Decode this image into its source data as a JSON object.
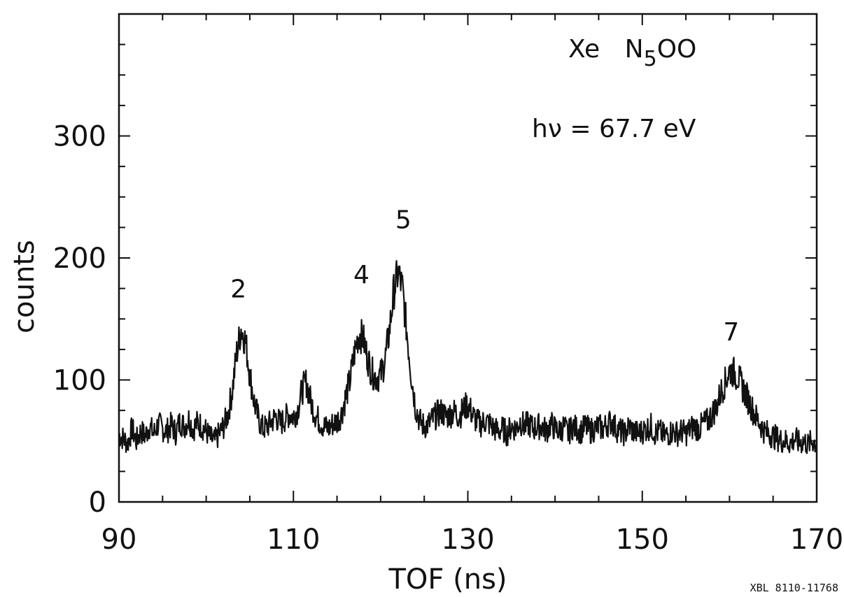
{
  "chart_data": {
    "type": "line",
    "title": "",
    "xlabel": "TOF (ns)",
    "ylabel": "counts",
    "xlim": [
      90,
      170
    ],
    "ylim": [
      0,
      400
    ],
    "xticks": [
      90,
      110,
      130,
      150,
      170
    ],
    "yticks": [
      0,
      100,
      200,
      300
    ],
    "grid": false,
    "legend": "none",
    "line_color": "#111111",
    "annotation": {
      "element": "Xe",
      "transition_main": "N",
      "transition_sub": "5",
      "transition_tail": "OO",
      "energy": "hν = 67.7 eV"
    },
    "peak_labels": [
      {
        "text": "2",
        "x": 103.7,
        "y": 148
      },
      {
        "text": "4",
        "x": 117.8,
        "y": 160
      },
      {
        "text": "5",
        "x": 122.6,
        "y": 205
      },
      {
        "text": "7",
        "x": 160.2,
        "y": 113
      }
    ],
    "credit": "XBL 8110-11768",
    "x": [
      90,
      90.5,
      91,
      91.5,
      92,
      92.5,
      93,
      93.5,
      94,
      94.5,
      95,
      95.5,
      96,
      96.5,
      97,
      97.5,
      98,
      98.5,
      99,
      99.5,
      100,
      100.5,
      101,
      101.5,
      102,
      102.5,
      103,
      103.5,
      104,
      104.5,
      105,
      105.5,
      106,
      106.5,
      107,
      107.5,
      108,
      108.5,
      109,
      109.5,
      110,
      110.5,
      111,
      111.5,
      112,
      112.5,
      113,
      113.5,
      114,
      114.5,
      115,
      115.5,
      116,
      116.5,
      117,
      117.5,
      118,
      118.5,
      119,
      119.5,
      120,
      120.5,
      121,
      121.5,
      122,
      122.5,
      123,
      123.5,
      124,
      124.5,
      125,
      125.5,
      126,
      126.5,
      127,
      127.5,
      128,
      128.5,
      129,
      129.5,
      130,
      130.5,
      131,
      131.5,
      132,
      132.5,
      133,
      133.5,
      134,
      134.5,
      135,
      135.5,
      136,
      136.5,
      137,
      137.5,
      138,
      138.5,
      139,
      139.5,
      140,
      140.5,
      141,
      141.5,
      142,
      142.5,
      143,
      143.5,
      144,
      144.5,
      145,
      145.5,
      146,
      146.5,
      147,
      147.5,
      148,
      148.5,
      149,
      149.5,
      150,
      150.5,
      151,
      151.5,
      152,
      152.5,
      153,
      153.5,
      154,
      154.5,
      155,
      155.5,
      156,
      156.5,
      157,
      157.5,
      158,
      158.5,
      159,
      159.5,
      160,
      160.5,
      161,
      161.5,
      162,
      162.5,
      163,
      163.5,
      164,
      164.5,
      165,
      165.5,
      166,
      166.5,
      167,
      167.5,
      168,
      168.5,
      169,
      169.5,
      170
    ],
    "y": [
      55,
      52,
      48,
      60,
      50,
      58,
      54,
      62,
      56,
      64,
      60,
      58,
      63,
      57,
      66,
      62,
      68,
      60,
      65,
      62,
      58,
      52,
      50,
      56,
      62,
      72,
      92,
      122,
      142,
      132,
      105,
      82,
      68,
      60,
      62,
      66,
      70,
      64,
      68,
      72,
      70,
      76,
      92,
      98,
      82,
      72,
      66,
      62,
      60,
      64,
      66,
      72,
      86,
      100,
      122,
      138,
      134,
      118,
      106,
      102,
      104,
      116,
      140,
      172,
      188,
      175,
      140,
      105,
      78,
      66,
      62,
      64,
      68,
      72,
      74,
      70,
      72,
      74,
      70,
      76,
      80,
      72,
      66,
      64,
      66,
      64,
      60,
      58,
      60,
      56,
      62,
      60,
      66,
      62,
      64,
      60,
      62,
      62,
      58,
      64,
      60,
      58,
      62,
      56,
      62,
      60,
      58,
      62,
      58,
      60,
      62,
      60,
      64,
      66,
      60,
      58,
      56,
      62,
      58,
      56,
      58,
      60,
      62,
      56,
      58,
      54,
      56,
      58,
      56,
      58,
      56,
      60,
      62,
      60,
      64,
      66,
      72,
      78,
      90,
      98,
      108,
      106,
      102,
      94,
      86,
      78,
      70,
      64,
      58,
      56,
      54,
      52,
      50,
      50,
      48,
      52,
      48,
      50,
      47,
      50,
      48
    ]
  }
}
